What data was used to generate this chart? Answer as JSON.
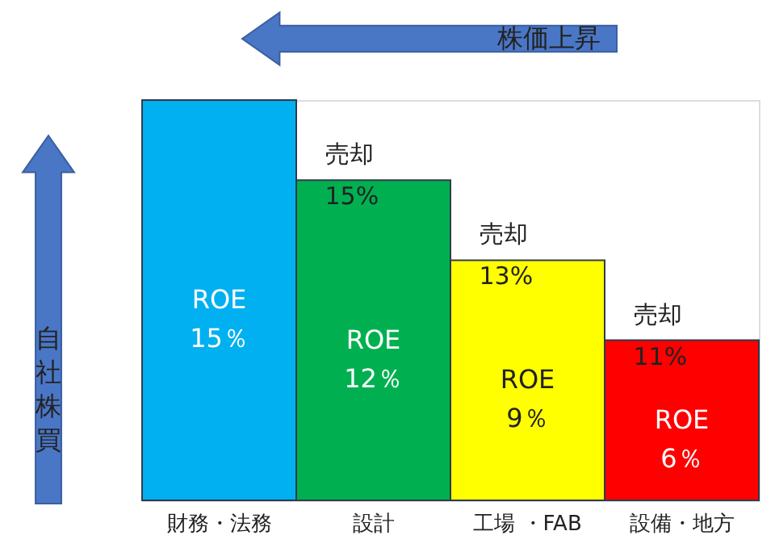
{
  "chart_data": {
    "type": "bar",
    "categories": [
      "財務・法務",
      "設計",
      "工場 ・FAB",
      "設備・地方"
    ],
    "values": [
      15,
      12,
      9,
      6
    ],
    "colors": [
      "#00b0f0",
      "#00b050",
      "#ffff00",
      "#ff0000"
    ],
    "value_labels": [
      "ROE 15％",
      "ROE 12％",
      "ROE 9％",
      "ROE 6％"
    ],
    "annotations": [
      "売却 15%",
      "売却 13%",
      "売却 11%",
      "株価上昇",
      "自社株買"
    ]
  }
}
